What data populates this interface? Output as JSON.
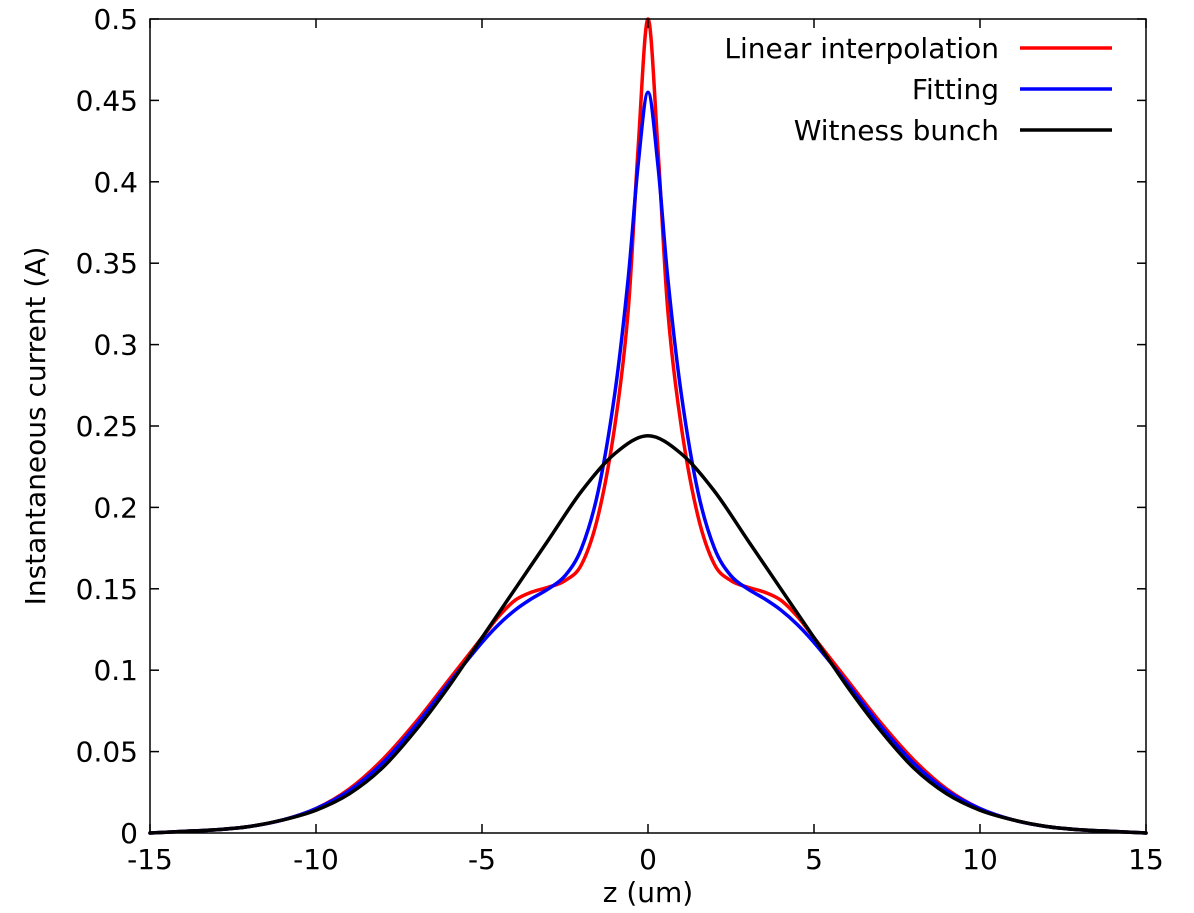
{
  "chart_data": {
    "type": "line",
    "xlabel": "z (um)",
    "ylabel": "Instantaneous current (A)",
    "xlim": [
      -15,
      15
    ],
    "ylim": [
      0,
      0.5
    ],
    "xticks": [
      -15,
      -10,
      -5,
      0,
      5,
      10,
      15
    ],
    "yticks": [
      0,
      0.05,
      0.1,
      0.15,
      0.2,
      0.25,
      0.3,
      0.35,
      0.4,
      0.45,
      0.5
    ],
    "ytick_labels": [
      "0",
      "0.05",
      "0.1",
      "0.15",
      "0.2",
      "0.25",
      "0.3",
      "0.35",
      "0.4",
      "0.45",
      "0.5"
    ],
    "grid": false,
    "legend_position": "top-right",
    "series": [
      {
        "name": "Linear interpolation",
        "color": "#ff0000",
        "x": [
          -15,
          -14,
          -13,
          -12,
          -11,
          -10,
          -9,
          -8,
          -7,
          -6,
          -5,
          -4.5,
          -4,
          -3.5,
          -3,
          -2.5,
          -2,
          -1.5,
          -1,
          -0.6,
          -0.3,
          0,
          0.3,
          0.6,
          1,
          1.5,
          2,
          2.5,
          3,
          3.5,
          4,
          4.5,
          5,
          6,
          7,
          8,
          9,
          10,
          11,
          12,
          13,
          14,
          15
        ],
        "y": [
          0.0,
          0.001,
          0.002,
          0.004,
          0.008,
          0.015,
          0.027,
          0.045,
          0.068,
          0.094,
          0.12,
          0.133,
          0.143,
          0.148,
          0.151,
          0.155,
          0.165,
          0.195,
          0.25,
          0.32,
          0.42,
          0.5,
          0.42,
          0.32,
          0.25,
          0.195,
          0.165,
          0.155,
          0.151,
          0.148,
          0.143,
          0.133,
          0.12,
          0.094,
          0.068,
          0.045,
          0.027,
          0.015,
          0.008,
          0.004,
          0.002,
          0.001,
          0.0
        ]
      },
      {
        "name": "Fitting",
        "color": "#0000ff",
        "x": [
          -15,
          -14,
          -13,
          -12,
          -11,
          -10,
          -9,
          -8,
          -7,
          -6,
          -5,
          -4.5,
          -4,
          -3.5,
          -3,
          -2.5,
          -2,
          -1.5,
          -1,
          -0.6,
          -0.3,
          0,
          0.3,
          0.6,
          1,
          1.5,
          2,
          2.5,
          3,
          3.5,
          4,
          4.5,
          5,
          6,
          7,
          8,
          9,
          10,
          11,
          12,
          13,
          14,
          15
        ],
        "y": [
          0.0,
          0.001,
          0.002,
          0.004,
          0.008,
          0.015,
          0.026,
          0.043,
          0.066,
          0.092,
          0.117,
          0.128,
          0.137,
          0.144,
          0.15,
          0.158,
          0.175,
          0.21,
          0.27,
          0.34,
          0.41,
          0.455,
          0.41,
          0.34,
          0.27,
          0.21,
          0.175,
          0.158,
          0.15,
          0.144,
          0.137,
          0.128,
          0.117,
          0.092,
          0.066,
          0.043,
          0.026,
          0.015,
          0.008,
          0.004,
          0.002,
          0.001,
          0.0
        ]
      },
      {
        "name": "Witness bunch",
        "color": "#000000",
        "x": [
          -15,
          -14,
          -13,
          -12,
          -11,
          -10,
          -9,
          -8,
          -7,
          -6,
          -5,
          -4,
          -3,
          -2,
          -1,
          0,
          1,
          2,
          3,
          4,
          5,
          6,
          7,
          8,
          9,
          10,
          11,
          12,
          13,
          14,
          15
        ],
        "y": [
          0.0,
          0.001,
          0.002,
          0.004,
          0.008,
          0.014,
          0.024,
          0.04,
          0.063,
          0.09,
          0.12,
          0.15,
          0.18,
          0.21,
          0.233,
          0.244,
          0.233,
          0.21,
          0.18,
          0.15,
          0.12,
          0.09,
          0.063,
          0.04,
          0.024,
          0.014,
          0.008,
          0.004,
          0.002,
          0.001,
          0.0
        ]
      }
    ]
  }
}
